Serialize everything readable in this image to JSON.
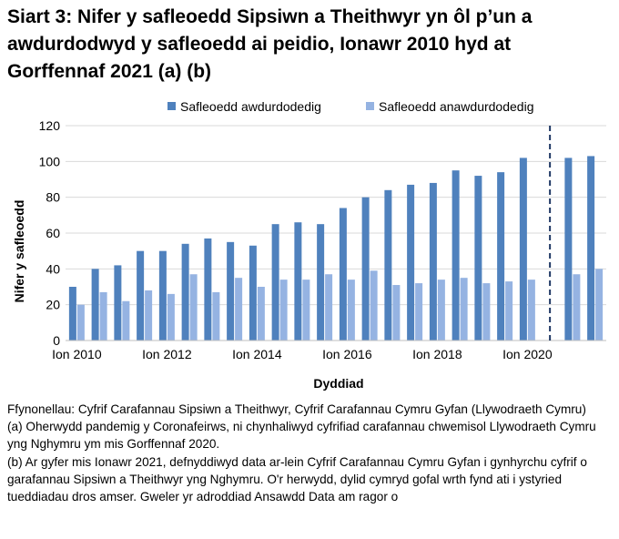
{
  "title": "Siart 3: Nifer y safleoedd Sipsiwn a Theithwyr yn ôl p’un a awdurdodwyd y safleoedd ai peidio, Ionawr 2010 hyd at Gorffennaf 2021 (a) (b)",
  "notes": [
    "Ffynonellau: Cyfrif Carafannau Sipsiwn a Theithwyr, Cyfrif Carafannau Cymru Gyfan (Llywodraeth Cymru)",
    "(a) Oherwydd pandemig y Coronafeirws, ni chynhaliwyd cyfrifiad carafannau chwemisol Llywodraeth Cymru yng Nghymru ym mis Gorffennaf 2020.",
    "(b) Ar gyfer mis Ionawr 2021, defnyddiwyd data ar-lein Cyfrif Carafannau Cymru Gyfan i gynhyrchu cyfrif o garafannau Sipsiwn a Theithwyr yng Nghymru. O'r herwydd, dylid cymryd gofal wrth fynd ati i ystyried tueddiadau dros amser. Gweler yr adroddiad Ansawdd Data am ragor o"
  ],
  "chart_data": {
    "type": "bar",
    "xlabel": "Dyddiad",
    "ylabel": "Nifer y safleoedd",
    "ylim": [
      0,
      120
    ],
    "yticks": [
      0,
      20,
      40,
      60,
      80,
      100,
      120
    ],
    "legend_position": "top",
    "gridlines": true,
    "category_count": 24,
    "tick_labels": [
      {
        "label": "Ion 2010",
        "index": 0
      },
      {
        "label": "Ion 2012",
        "index": 4
      },
      {
        "label": "Ion 2014",
        "index": 8
      },
      {
        "label": "Ion 2016",
        "index": 12
      },
      {
        "label": "Ion 2018",
        "index": 16
      },
      {
        "label": "Ion 2020",
        "index": 20
      }
    ],
    "divider_index": 21.5,
    "series": [
      {
        "name": "Safleoedd awdurdodedig",
        "color": "#4f81bd",
        "values": [
          30,
          40,
          42,
          50,
          50,
          54,
          57,
          55,
          53,
          65,
          66,
          65,
          74,
          80,
          84,
          87,
          88,
          95,
          92,
          94,
          102,
          null,
          102,
          103
        ]
      },
      {
        "name": "Safleoedd anawdurdodedig",
        "color": "#95b3e2",
        "values": [
          20,
          27,
          22,
          28,
          26,
          37,
          27,
          35,
          30,
          34,
          34,
          37,
          34,
          39,
          31,
          32,
          34,
          35,
          32,
          33,
          34,
          null,
          37,
          40
        ]
      }
    ]
  }
}
